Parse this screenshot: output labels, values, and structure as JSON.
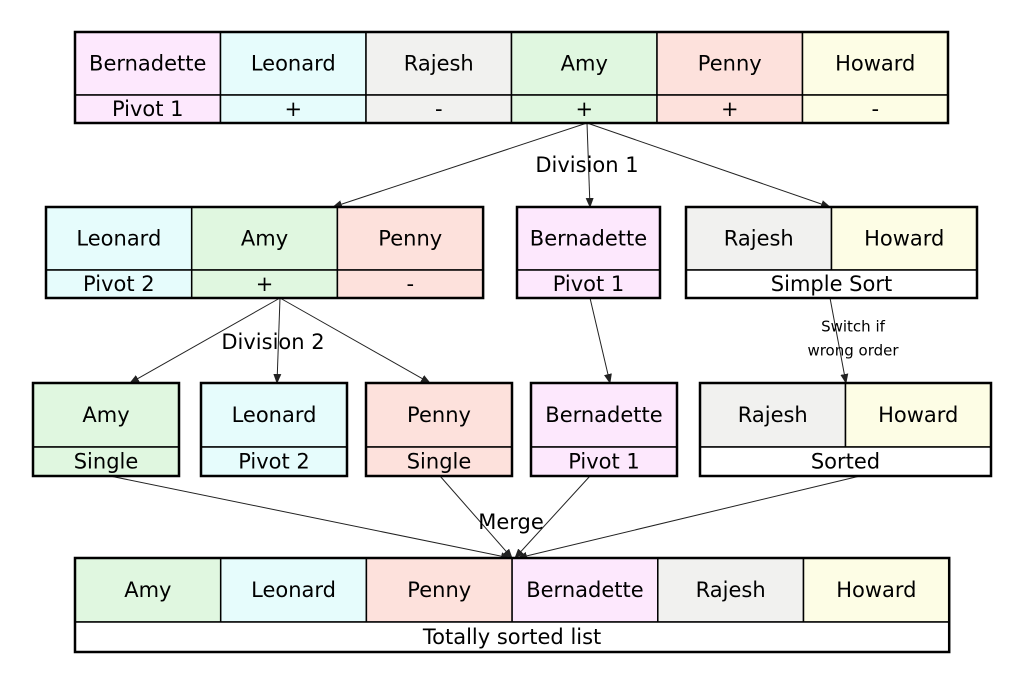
{
  "initial": {
    "names": [
      "Bernadette",
      "Leonard",
      "Rajesh",
      "Amy",
      "Penny",
      "Howard"
    ],
    "tags": [
      "Pivot 1",
      "+",
      "-",
      "+",
      "+",
      "-"
    ]
  },
  "division_1": {
    "label": "Division 1",
    "groups": [
      {
        "names": [
          "Leonard",
          "Amy",
          "Penny"
        ],
        "tags": [
          "Pivot 2",
          "+",
          "-"
        ]
      },
      {
        "names": [
          "Bernadette"
        ],
        "tags": [
          "Pivot 1"
        ]
      },
      {
        "names": [
          "Rajesh",
          "Howard"
        ],
        "footer": "Simple Sort"
      }
    ]
  },
  "division_2": {
    "label": "Division 2",
    "note": [
      "Switch if",
      "wrong order"
    ],
    "groups": [
      {
        "names": [
          "Amy"
        ],
        "tags": [
          "Single"
        ]
      },
      {
        "names": [
          "Leonard"
        ],
        "tags": [
          "Pivot 2"
        ]
      },
      {
        "names": [
          "Penny"
        ],
        "tags": [
          "Single"
        ]
      },
      {
        "names": [
          "Bernadette"
        ],
        "tags": [
          "Pivot 1"
        ]
      },
      {
        "names": [
          "Rajesh",
          "Howard"
        ],
        "footer": "Sorted"
      }
    ]
  },
  "merge": {
    "label": "Merge",
    "names": [
      "Amy",
      "Leonard",
      "Penny",
      "Bernadette",
      "Rajesh",
      "Howard"
    ],
    "footer": "Totally sorted list"
  }
}
